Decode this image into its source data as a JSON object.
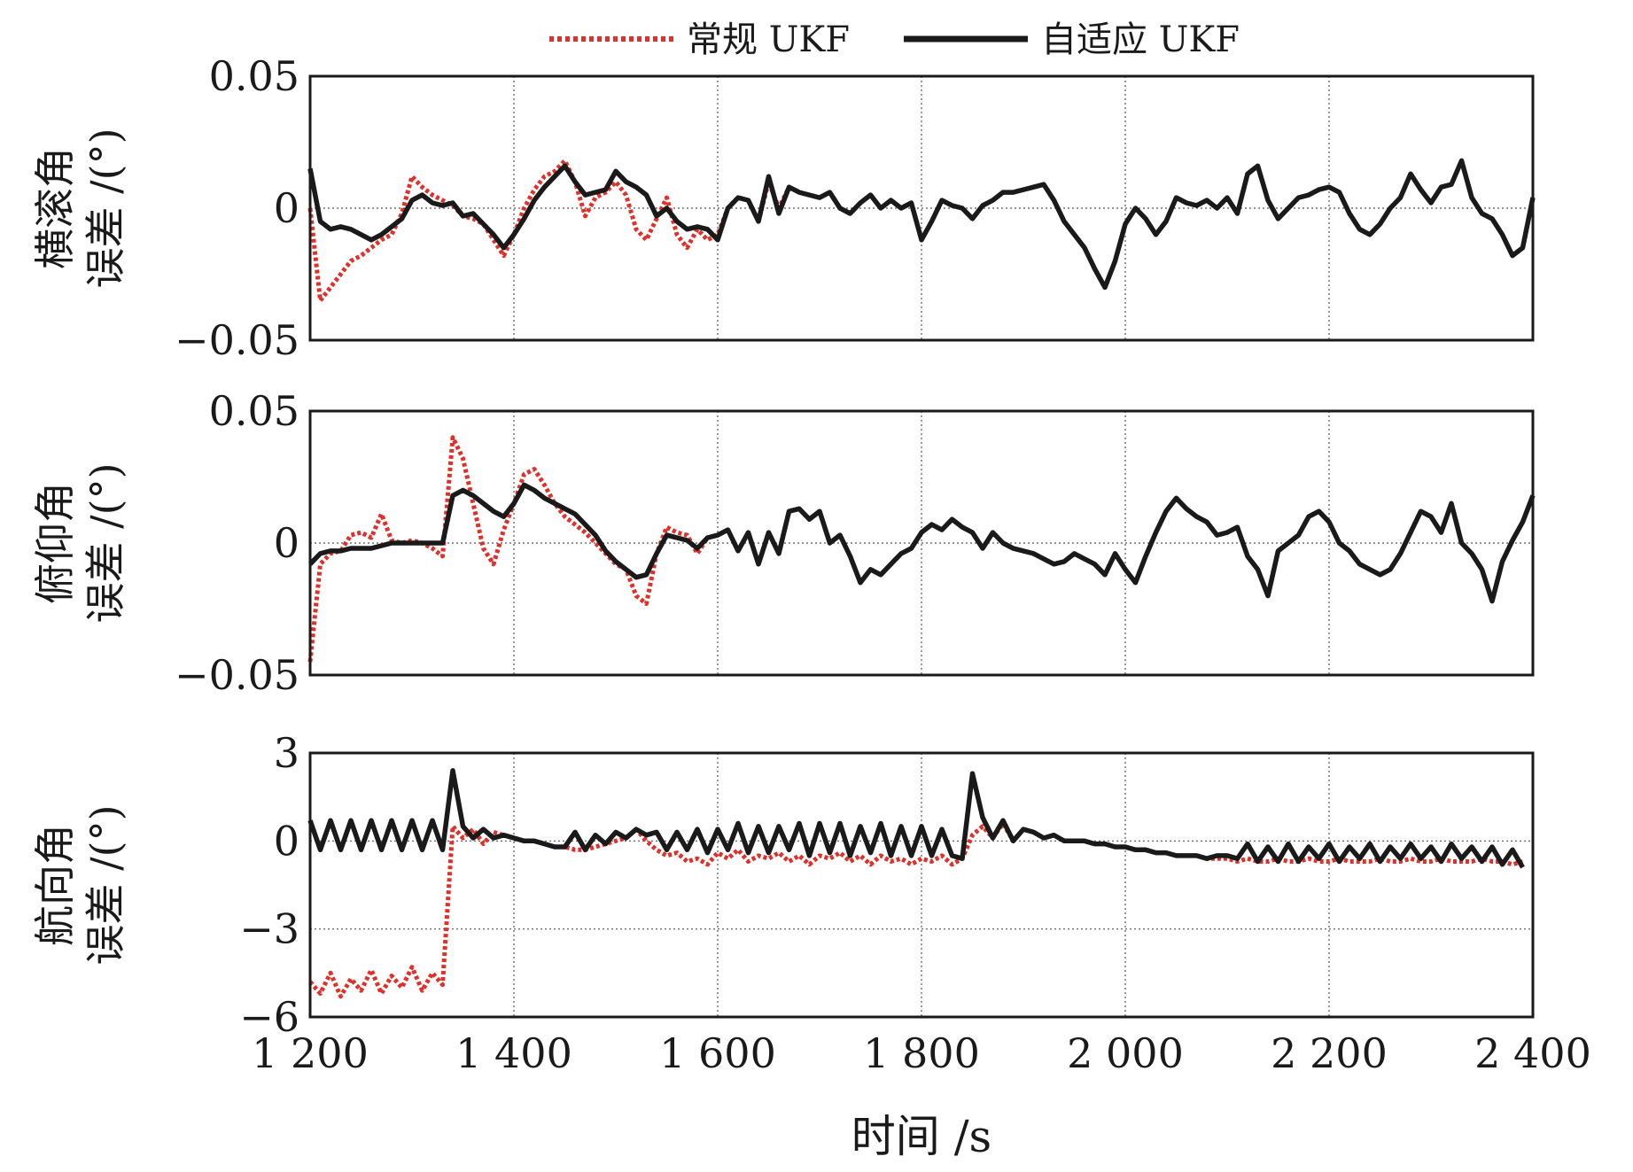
{
  "chart_data": {
    "type": "line",
    "x": [
      1200,
      1210,
      1220,
      1230,
      1240,
      1250,
      1260,
      1270,
      1280,
      1290,
      1300,
      1310,
      1320,
      1330,
      1340,
      1350,
      1360,
      1370,
      1380,
      1390,
      1400,
      1410,
      1420,
      1430,
      1440,
      1450,
      1460,
      1470,
      1480,
      1490,
      1500,
      1510,
      1520,
      1530,
      1540,
      1550,
      1560,
      1570,
      1580,
      1590,
      1600,
      1610,
      1620,
      1630,
      1640,
      1650,
      1660,
      1670,
      1680,
      1690,
      1700,
      1710,
      1720,
      1730,
      1740,
      1750,
      1760,
      1770,
      1780,
      1790,
      1800,
      1810,
      1820,
      1830,
      1840,
      1850,
      1860,
      1870,
      1880,
      1890,
      1900,
      1910,
      1920,
      1930,
      1940,
      1950,
      1960,
      1970,
      1980,
      1990,
      2000,
      2010,
      2020,
      2030,
      2040,
      2050,
      2060,
      2070,
      2080,
      2090,
      2100,
      2110,
      2120,
      2130,
      2140,
      2150,
      2160,
      2170,
      2180,
      2190,
      2200,
      2210,
      2220,
      2230,
      2240,
      2250,
      2260,
      2270,
      2280,
      2290,
      2300,
      2310,
      2320,
      2330,
      2340,
      2350,
      2360,
      2370,
      2380,
      2390,
      2400
    ],
    "xlim": [
      1200,
      2400
    ],
    "x_tick_values": [
      1200,
      1400,
      1600,
      1800,
      2000,
      2200,
      2400
    ],
    "x_tick_labels": [
      "1 200",
      "1 400",
      "1 600",
      "1 800",
      "2 000",
      "2 200",
      "2 400"
    ],
    "xlabel": "时间 /s",
    "legend": {
      "position": "top-center",
      "entries": [
        {
          "label": "常规 UKF",
          "color": "#e0302a",
          "style": "dotted"
        },
        {
          "label": "自适应 UKF",
          "color": "#1a1a1a",
          "style": "solid"
        }
      ]
    },
    "panels": [
      {
        "ylabel_line1": "横滚角",
        "ylabel_line2": "误差 /(°)",
        "ylim": [
          -0.05,
          0.05
        ],
        "y_tick_values": [
          0.05,
          0,
          -0.05
        ],
        "y_tick_labels": [
          "0.05",
          "0",
          "−0.05"
        ],
        "series": [
          {
            "name": "常规 UKF",
            "color": "#e0302a",
            "style": "dotted",
            "values": [
              0.0,
              -0.035,
              -0.03,
              -0.025,
              -0.02,
              -0.018,
              -0.015,
              -0.012,
              -0.01,
              -0.002,
              0.012,
              0.008,
              0.005,
              0.003,
              0.001,
              -0.003,
              -0.004,
              -0.006,
              -0.012,
              -0.018,
              -0.01,
              0.0,
              0.007,
              0.012,
              0.014,
              0.018,
              0.01,
              -0.003,
              0.004,
              0.006,
              0.01,
              0.005,
              -0.008,
              -0.012,
              -0.004,
              0.004,
              -0.01,
              -0.015,
              -0.008,
              -0.012,
              -0.01,
              0.0,
              0.004,
              0.003,
              -0.005,
              0.01,
              0.0,
              0.008,
              0.006,
              0.005,
              0.004,
              0.006,
              0.0,
              -0.002,
              0.002,
              0.005,
              0.0,
              0.003,
              0.0,
              0.002,
              -0.012,
              -0.005,
              0.003,
              0.001,
              0.0,
              -0.004,
              0.001,
              0.003,
              0.006,
              0.006,
              0.007,
              0.008,
              0.009,
              0.003,
              -0.005,
              -0.01,
              -0.015,
              -0.023,
              -0.03,
              -0.02,
              -0.006,
              0.0,
              -0.004,
              -0.01,
              -0.005,
              0.004,
              0.002,
              0.001,
              0.003,
              0.0,
              0.004,
              -0.002,
              0.013,
              0.016,
              0.003,
              -0.004,
              0.0,
              0.004,
              0.005,
              0.007,
              0.008,
              0.006,
              -0.002,
              -0.008,
              -0.01,
              -0.006,
              0.0,
              0.004,
              0.013,
              0.007,
              0.002,
              0.008,
              0.009,
              0.018,
              0.004,
              -0.002,
              -0.004,
              -0.01,
              -0.018,
              -0.015,
              0.004
            ]
          },
          {
            "name": "自适应 UKF",
            "color": "#1a1a1a",
            "style": "solid",
            "values": [
              0.015,
              -0.005,
              -0.008,
              -0.007,
              -0.008,
              -0.01,
              -0.012,
              -0.01,
              -0.007,
              -0.004,
              0.003,
              0.005,
              0.002,
              0.001,
              0.002,
              -0.003,
              -0.002,
              -0.006,
              -0.01,
              -0.015,
              -0.01,
              -0.004,
              0.003,
              0.008,
              0.012,
              0.016,
              0.01,
              0.005,
              0.006,
              0.007,
              0.014,
              0.01,
              0.008,
              0.005,
              -0.003,
              0.0,
              -0.005,
              -0.008,
              -0.007,
              -0.008,
              -0.012,
              0.0,
              0.004,
              0.003,
              -0.005,
              0.012,
              -0.002,
              0.008,
              0.006,
              0.005,
              0.004,
              0.006,
              0.0,
              -0.002,
              0.002,
              0.005,
              0.0,
              0.003,
              0.0,
              0.002,
              -0.012,
              -0.005,
              0.003,
              0.001,
              0.0,
              -0.004,
              0.001,
              0.003,
              0.006,
              0.006,
              0.007,
              0.008,
              0.009,
              0.003,
              -0.005,
              -0.01,
              -0.015,
              -0.023,
              -0.03,
              -0.02,
              -0.006,
              0.0,
              -0.004,
              -0.01,
              -0.005,
              0.004,
              0.002,
              0.001,
              0.003,
              0.0,
              0.004,
              -0.002,
              0.013,
              0.016,
              0.003,
              -0.004,
              0.0,
              0.004,
              0.005,
              0.007,
              0.008,
              0.006,
              -0.002,
              -0.008,
              -0.01,
              -0.006,
              0.0,
              0.004,
              0.013,
              0.007,
              0.002,
              0.008,
              0.009,
              0.018,
              0.004,
              -0.002,
              -0.004,
              -0.01,
              -0.018,
              -0.015,
              0.004
            ]
          }
        ]
      },
      {
        "ylabel_line1": "俯仰角",
        "ylabel_line2": "误差 /(°)",
        "ylim": [
          -0.05,
          0.05
        ],
        "y_tick_values": [
          0.05,
          0,
          -0.05
        ],
        "y_tick_labels": [
          "0.05",
          "0",
          "−0.05"
        ],
        "series": [
          {
            "name": "常规 UKF",
            "color": "#e0302a",
            "style": "dotted",
            "values": [
              -0.045,
              -0.008,
              -0.004,
              -0.003,
              0.003,
              0.004,
              0.002,
              0.011,
              0.001,
              0.0,
              0.001,
              0.0,
              -0.002,
              -0.005,
              0.04,
              0.032,
              0.015,
              -0.002,
              -0.008,
              0.005,
              0.015,
              0.026,
              0.028,
              0.022,
              0.015,
              0.01,
              0.007,
              0.004,
              0.0,
              -0.004,
              -0.008,
              -0.01,
              -0.02,
              -0.023,
              -0.004,
              0.006,
              0.004,
              0.003,
              -0.004,
              0.002,
              0.003,
              0.005,
              -0.003,
              0.004,
              -0.008,
              0.004,
              -0.004,
              0.012,
              0.013,
              0.009,
              0.012,
              0.0,
              0.003,
              -0.005,
              -0.015,
              -0.01,
              -0.012,
              -0.008,
              -0.004,
              -0.002,
              0.004,
              0.007,
              0.005,
              0.009,
              0.006,
              0.004,
              -0.002,
              0.004,
              0.0,
              -0.002,
              -0.003,
              -0.004,
              -0.006,
              -0.008,
              -0.007,
              -0.004,
              -0.006,
              -0.008,
              -0.012,
              -0.004,
              -0.01,
              -0.015,
              -0.005,
              0.004,
              0.012,
              0.017,
              0.013,
              0.01,
              0.008,
              0.003,
              0.004,
              0.006,
              -0.005,
              -0.01,
              -0.02,
              -0.003,
              0.0,
              0.003,
              0.01,
              0.012,
              0.008,
              0.0,
              -0.003,
              -0.008,
              -0.01,
              -0.012,
              -0.01,
              -0.004,
              0.004,
              0.012,
              0.01,
              0.004,
              0.015,
              0.0,
              -0.004,
              -0.01,
              -0.022,
              -0.007,
              0.001,
              0.008,
              0.018
            ]
          },
          {
            "name": "自适应 UKF",
            "color": "#1a1a1a",
            "style": "solid",
            "values": [
              -0.008,
              -0.004,
              -0.003,
              -0.003,
              -0.002,
              -0.002,
              -0.002,
              -0.001,
              0.0,
              0.0,
              0.0,
              0.0,
              0.0,
              0.0,
              0.018,
              0.02,
              0.018,
              0.015,
              0.012,
              0.01,
              0.015,
              0.022,
              0.02,
              0.017,
              0.015,
              0.013,
              0.011,
              0.007,
              0.003,
              -0.003,
              -0.007,
              -0.01,
              -0.013,
              -0.012,
              -0.004,
              0.003,
              0.002,
              0.001,
              -0.002,
              0.002,
              0.003,
              0.005,
              -0.003,
              0.004,
              -0.008,
              0.004,
              -0.004,
              0.012,
              0.013,
              0.009,
              0.012,
              0.0,
              0.003,
              -0.005,
              -0.015,
              -0.01,
              -0.012,
              -0.008,
              -0.004,
              -0.002,
              0.004,
              0.007,
              0.005,
              0.009,
              0.006,
              0.004,
              -0.002,
              0.004,
              0.0,
              -0.002,
              -0.003,
              -0.004,
              -0.006,
              -0.008,
              -0.007,
              -0.004,
              -0.006,
              -0.008,
              -0.012,
              -0.004,
              -0.01,
              -0.015,
              -0.005,
              0.004,
              0.012,
              0.017,
              0.013,
              0.01,
              0.008,
              0.003,
              0.004,
              0.006,
              -0.005,
              -0.01,
              -0.02,
              -0.003,
              0.0,
              0.003,
              0.01,
              0.012,
              0.008,
              0.0,
              -0.003,
              -0.008,
              -0.01,
              -0.012,
              -0.01,
              -0.004,
              0.004,
              0.012,
              0.01,
              0.004,
              0.015,
              0.0,
              -0.004,
              -0.01,
              -0.022,
              -0.007,
              0.001,
              0.008,
              0.018
            ]
          }
        ]
      },
      {
        "ylabel_line1": "航向角",
        "ylabel_line2": "误差 /(°)",
        "ylim": [
          -6,
          3
        ],
        "y_tick_values": [
          3,
          0,
          -3,
          -6
        ],
        "y_tick_labels": [
          "3",
          "0",
          "−3",
          "−6"
        ],
        "series": [
          {
            "name": "常规 UKF",
            "color": "#e0302a",
            "style": "dotted",
            "values": [
              -4.8,
              -5.2,
              -4.5,
              -5.3,
              -4.7,
              -5.1,
              -4.4,
              -5.2,
              -4.6,
              -5.0,
              -4.3,
              -5.1,
              -4.5,
              -4.9,
              0.5,
              0.1,
              0.4,
              -0.1,
              0.3,
              0.2,
              0.1,
              0.0,
              0.0,
              -0.1,
              -0.2,
              -0.2,
              -0.3,
              -0.3,
              -0.2,
              -0.1,
              0.0,
              0.1,
              0.4,
              0.0,
              -0.3,
              -0.5,
              -0.4,
              -0.7,
              -0.6,
              -0.8,
              -0.4,
              -0.6,
              -0.3,
              -0.7,
              -0.5,
              -0.6,
              -0.4,
              -0.7,
              -0.5,
              -0.8,
              -0.5,
              -0.6,
              -0.4,
              -0.7,
              -0.5,
              -0.8,
              -0.5,
              -0.7,
              -0.6,
              -0.8,
              -0.6,
              -0.7,
              -0.5,
              -0.8,
              -0.6,
              0.2,
              0.5,
              0.1,
              0.6,
              0.0,
              0.4,
              0.3,
              0.1,
              0.2,
              0.0,
              0.0,
              0.0,
              -0.1,
              -0.1,
              -0.2,
              -0.2,
              -0.3,
              -0.3,
              -0.4,
              -0.4,
              -0.5,
              -0.5,
              -0.5,
              -0.6,
              -0.6,
              -0.6,
              -0.7,
              -0.6,
              -0.7,
              -0.7,
              -0.6,
              -0.7,
              -0.7,
              -0.6,
              -0.7,
              -0.7,
              -0.6,
              -0.7,
              -0.7,
              -0.7,
              -0.6,
              -0.7,
              -0.7,
              -0.6,
              -0.7,
              -0.7,
              -0.6,
              -0.7,
              -0.7,
              -0.7,
              -0.6,
              -0.7,
              -0.7,
              -0.8,
              -0.7
            ]
          },
          {
            "name": "自适应 UKF",
            "color": "#1a1a1a",
            "style": "solid",
            "values": [
              0.7,
              -0.3,
              0.7,
              -0.3,
              0.7,
              -0.3,
              0.7,
              -0.3,
              0.7,
              -0.3,
              0.7,
              -0.3,
              0.7,
              -0.3,
              2.4,
              0.5,
              0.1,
              0.4,
              0.1,
              0.2,
              0.1,
              0.0,
              0.0,
              -0.1,
              -0.2,
              -0.2,
              0.3,
              -0.3,
              0.2,
              -0.1,
              0.3,
              0.1,
              0.4,
              0.2,
              0.3,
              -0.3,
              0.3,
              -0.3,
              0.4,
              -0.4,
              0.4,
              -0.3,
              0.6,
              -0.4,
              0.5,
              -0.4,
              0.5,
              -0.3,
              0.6,
              -0.5,
              0.6,
              -0.4,
              0.6,
              -0.5,
              0.5,
              -0.4,
              0.6,
              -0.5,
              0.5,
              -0.5,
              0.5,
              -0.5,
              0.4,
              -0.5,
              -0.6,
              2.3,
              0.8,
              0.1,
              0.7,
              0.0,
              0.4,
              0.3,
              0.1,
              0.2,
              0.0,
              0.0,
              0.0,
              -0.1,
              -0.1,
              -0.2,
              -0.2,
              -0.3,
              -0.3,
              -0.4,
              -0.4,
              -0.5,
              -0.5,
              -0.5,
              -0.6,
              -0.5,
              -0.5,
              -0.6,
              -0.1,
              -0.7,
              -0.2,
              -0.7,
              -0.1,
              -0.7,
              -0.2,
              -0.6,
              -0.1,
              -0.7,
              -0.2,
              -0.6,
              -0.1,
              -0.7,
              -0.2,
              -0.6,
              -0.1,
              -0.6,
              -0.2,
              -0.7,
              -0.1,
              -0.6,
              -0.2,
              -0.7,
              -0.2,
              -0.8,
              -0.3,
              -0.9
            ]
          }
        ]
      }
    ]
  }
}
